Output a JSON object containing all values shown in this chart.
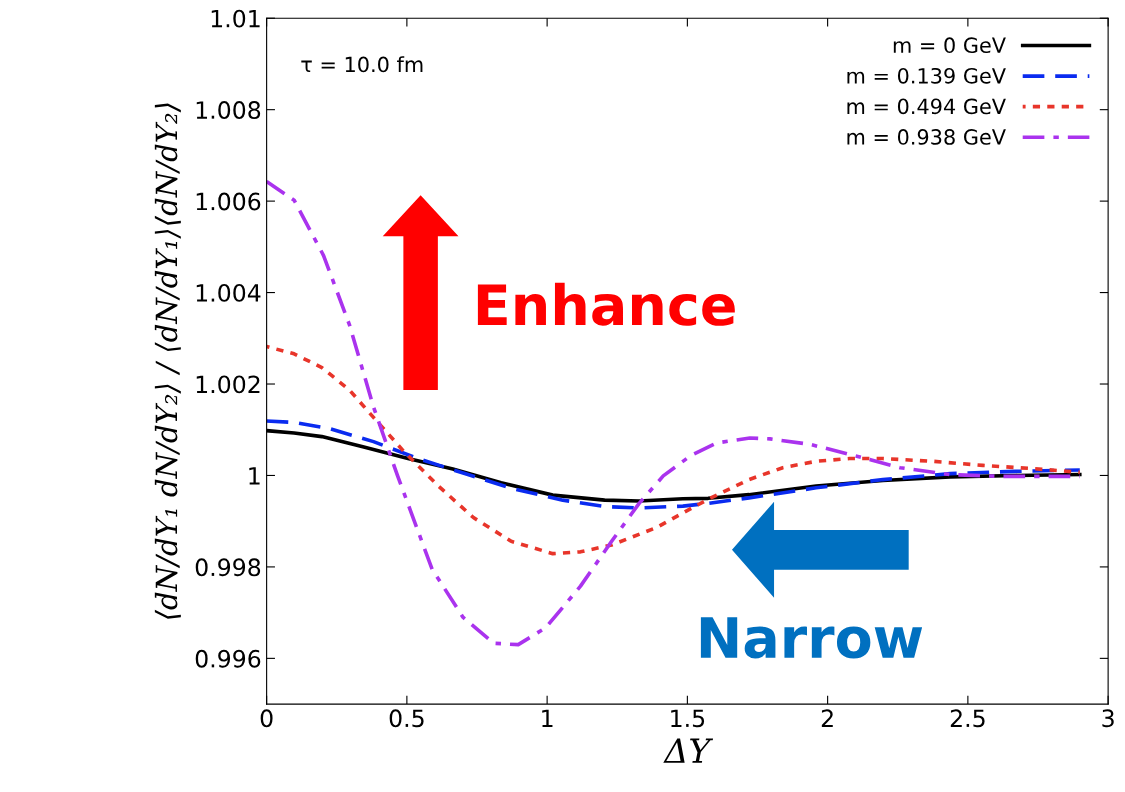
{
  "chart_data": {
    "type": "line",
    "xlabel": "ΔY",
    "ylabel": "⟨dN/dY₁ dN/dY₂⟩ / ⟨dN/dY₁⟩⟨dN/dY₂⟩",
    "xlim": [
      0,
      3
    ],
    "xticks": [
      0,
      0.5,
      1,
      1.5,
      2,
      2.5,
      3
    ],
    "ylim": [
      0.995,
      1.01
    ],
    "yticks": [
      0.996,
      0.998,
      {
        "value": 1,
        "label": "1"
      },
      1.002,
      1.004,
      1.006,
      1.008,
      1.01
    ],
    "grid": false,
    "legend": "top right",
    "marker": "none",
    "annotations": [
      "τ = 10.0 fm",
      "Enhance",
      "Narrow"
    ],
    "series": [
      {
        "name": "m = 0 GeV",
        "color": "#000000",
        "line_style": "solid",
        "x": [
          0,
          0.098,
          0.197,
          0.343,
          0.504,
          0.664,
          0.836,
          1.02,
          1.205,
          1.328,
          1.484,
          1.574,
          1.72,
          1.959,
          2.197,
          2.437,
          2.67,
          2.899
        ],
        "values": [
          1.00098,
          1.00093,
          1.00085,
          1.00063,
          1.00037,
          1.00014,
          0.99984,
          0.99957,
          0.99946,
          0.99944,
          0.99949,
          0.9995,
          0.99958,
          0.99977,
          0.99989,
          0.99997,
          1.0,
          1.00002
        ]
      },
      {
        "name": "m = 0.139 GeV",
        "color": "#0a2bf0",
        "line_style": "dashed",
        "x": [
          0,
          0.098,
          0.221,
          0.381,
          0.54,
          0.712,
          0.872,
          1.056,
          1.205,
          1.328,
          1.484,
          1.574,
          1.72,
          1.959,
          2.197,
          2.437,
          2.67,
          2.899
        ],
        "values": [
          1.00119,
          1.00116,
          1.00103,
          1.00074,
          1.00037,
          1.00003,
          0.99972,
          0.99946,
          0.99932,
          0.99929,
          0.99933,
          0.99939,
          0.99951,
          0.99973,
          0.99991,
          1.00004,
          1.00009,
          1.00012
        ]
      },
      {
        "name": "m = 0.494 GeV",
        "color": "#e8352a",
        "line_style": "dotted",
        "x": [
          0,
          0.098,
          0.197,
          0.295,
          0.381,
          0.49,
          0.614,
          0.737,
          0.872,
          1.02,
          1.119,
          1.23,
          1.39,
          1.484,
          1.574,
          1.72,
          1.84,
          1.959,
          2.078,
          2.197,
          2.375,
          2.553,
          2.731,
          2.899
        ],
        "values": [
          1.00282,
          1.00266,
          1.00236,
          1.00187,
          1.00127,
          1.00052,
          0.99976,
          0.99908,
          0.99856,
          0.99829,
          0.99833,
          0.99848,
          0.99886,
          0.99918,
          0.99948,
          0.99991,
          1.00017,
          1.00031,
          1.00037,
          1.00037,
          1.00031,
          1.00022,
          1.00015,
          1.00007
        ]
      },
      {
        "name": "m = 0.938 GeV",
        "color": "#aa33ee",
        "line_style": "dashdot",
        "x": [
          0,
          0.098,
          0.203,
          0.295,
          0.381,
          0.467,
          0.59,
          0.7,
          0.81,
          0.897,
          0.995,
          1.119,
          1.23,
          1.328,
          1.414,
          1.513,
          1.604,
          1.723,
          1.795,
          1.937,
          2.08,
          2.258,
          2.437,
          2.615,
          2.899
        ],
        "values": [
          1.00643,
          1.00602,
          1.00481,
          1.0033,
          1.0015,
          0.99999,
          0.99795,
          0.9969,
          0.99633,
          0.9963,
          0.99667,
          0.99758,
          0.99856,
          0.99939,
          0.99999,
          1.00044,
          1.00071,
          1.00082,
          1.0008,
          1.00068,
          1.00046,
          1.00017,
          1.00002,
          0.99998,
          0.99998
        ]
      }
    ]
  }
}
